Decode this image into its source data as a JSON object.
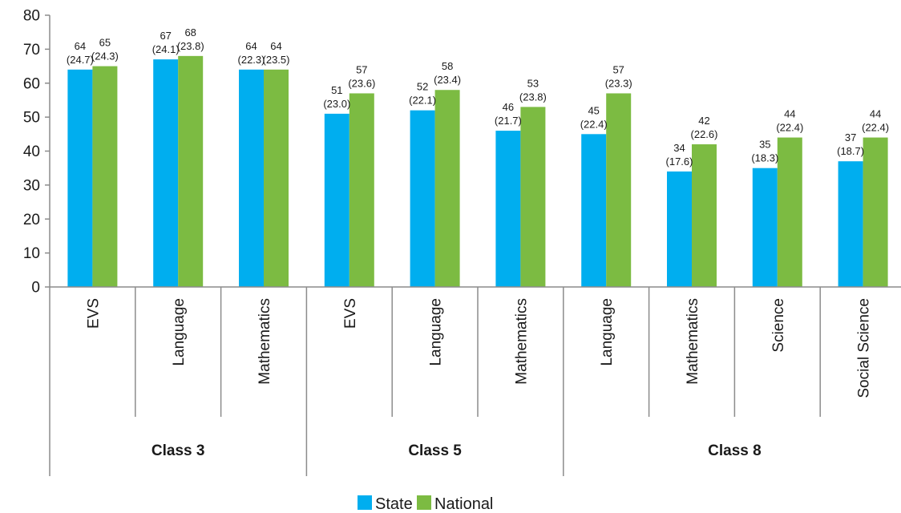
{
  "chart_data": {
    "type": "bar",
    "title": "",
    "xlabel": "",
    "ylabel": "",
    "ylim": [
      0,
      80
    ],
    "yticks": [
      0,
      10,
      20,
      30,
      40,
      50,
      60,
      70,
      80
    ],
    "grid": false,
    "legend_position": "bottom",
    "colors": {
      "State": "#00aeef",
      "National": "#7cbb42"
    },
    "groups": [
      {
        "label": "Class 3",
        "categories": [
          "EVS",
          "Language",
          "Mathematics"
        ]
      },
      {
        "label": "Class 5",
        "categories": [
          "EVS",
          "Language",
          "Mathematics"
        ]
      },
      {
        "label": "Class 8",
        "categories": [
          "Language",
          "Mathematics",
          "Science",
          "Social Science"
        ]
      }
    ],
    "categories": [
      "EVS",
      "Language",
      "Mathematics",
      "EVS",
      "Language",
      "Mathematics",
      "Language",
      "Mathematics",
      "Science",
      "Social Science"
    ],
    "series": [
      {
        "name": "State",
        "values": [
          64,
          67,
          64,
          51,
          52,
          46,
          45,
          34,
          35,
          37
        ],
        "sd": [
          "(24.7)",
          "(24.1)",
          "(22.3)",
          "(23.0)",
          "(22.1)",
          "(21.7)",
          "(22.4)",
          "(17.6)",
          "(18.3)",
          "(18.7)"
        ]
      },
      {
        "name": "National",
        "values": [
          65,
          68,
          64,
          57,
          58,
          53,
          57,
          42,
          44,
          44
        ],
        "sd": [
          "(24.3)",
          "(23.8)",
          "(23.5)",
          "(23.6)",
          "(23.4)",
          "(23.8)",
          "(23.3)",
          "(22.6)",
          "(22.4)",
          "(22.4)"
        ]
      }
    ]
  }
}
